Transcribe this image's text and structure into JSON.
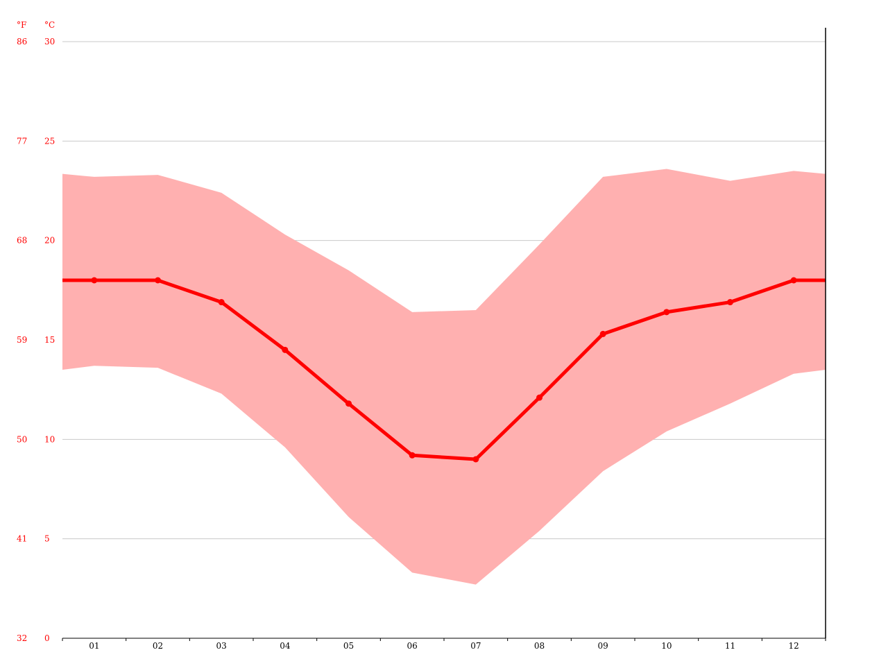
{
  "chart_data": {
    "type": "line",
    "categories": [
      "01",
      "02",
      "03",
      "04",
      "05",
      "06",
      "07",
      "08",
      "09",
      "10",
      "11",
      "12"
    ],
    "series": [
      {
        "values": [
          18.0,
          18.0,
          16.9,
          14.5,
          11.8,
          9.2,
          9.0,
          12.1,
          15.3,
          16.4,
          16.9,
          18.0
        ]
      }
    ],
    "range_band": {
      "upper": [
        23.2,
        23.3,
        22.4,
        20.3,
        18.5,
        16.4,
        16.5,
        19.8,
        23.2,
        23.6,
        23.0,
        23.5
      ],
      "lower": [
        13.7,
        13.6,
        12.3,
        9.6,
        6.1,
        3.3,
        2.7,
        5.4,
        8.4,
        10.4,
        11.8,
        13.3
      ]
    },
    "y_units": {
      "fahrenheit": "°F",
      "celsius": "°C"
    },
    "y_ticks_celsius": [
      "0",
      "5",
      "10",
      "15",
      "20",
      "25",
      "30"
    ],
    "y_ticks_fahrenheit": [
      "32",
      "41",
      "50",
      "59",
      "68",
      "77",
      "86"
    ],
    "ylim": [
      0,
      30
    ],
    "grid": true,
    "colors": {
      "line": "#ff0000",
      "band": "#ffb0b0",
      "grid": "#c8c8c8",
      "axis": "#000000",
      "ylabels": "#ff0000"
    }
  }
}
